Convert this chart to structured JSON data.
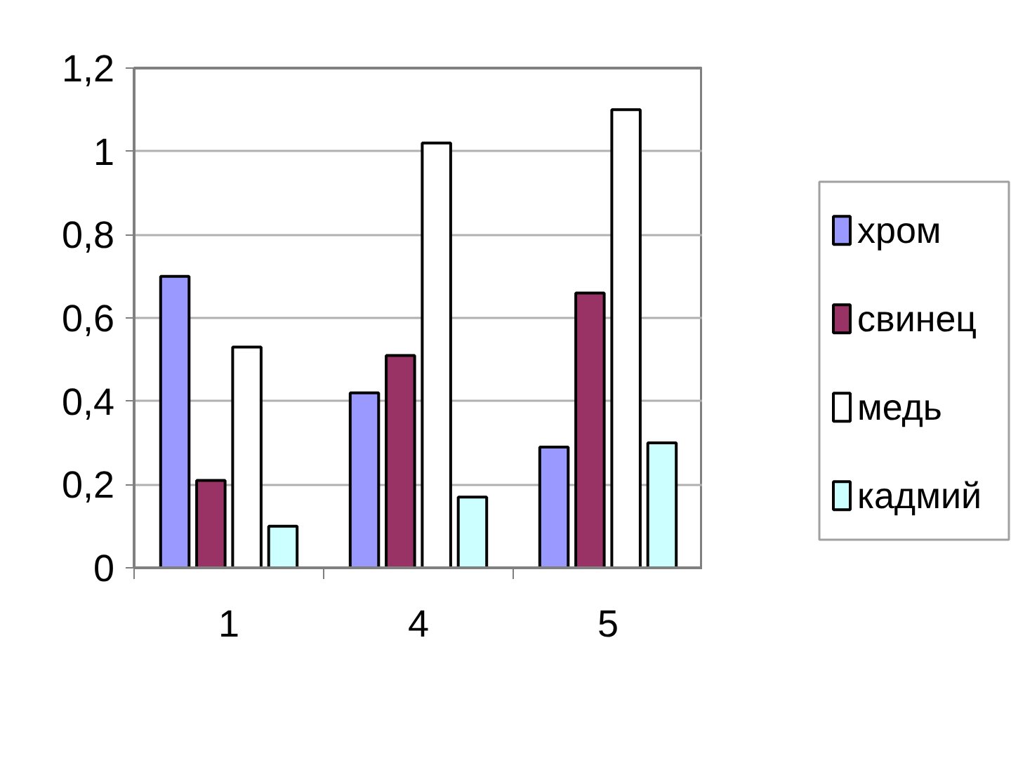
{
  "chart_data": {
    "type": "bar",
    "categories": [
      "1",
      "4",
      "5"
    ],
    "series": [
      {
        "name": "хром",
        "color": "#9999ff",
        "values": [
          0.7,
          0.42,
          0.29
        ]
      },
      {
        "name": "свинец",
        "color": "#993366",
        "values": [
          0.21,
          0.51,
          0.66
        ]
      },
      {
        "name": "медь",
        "color": "#ffffff",
        "values": [
          0.53,
          1.02,
          1.1
        ]
      },
      {
        "name": "кадмий",
        "color": "#ccffff",
        "values": [
          0.1,
          0.17,
          0.3
        ]
      }
    ],
    "ylim": [
      0,
      1.2
    ],
    "yticks": [
      0,
      {
        "value": 0.2,
        "label": "0,2"
      },
      {
        "value": 0.4,
        "label": "0,4"
      },
      {
        "value": 0.6,
        "label": "0,6"
      },
      {
        "value": 0.8,
        "label": "0,8"
      },
      1,
      {
        "value": 1.2,
        "label": "1,2"
      }
    ],
    "grid": "y",
    "legend": "right"
  }
}
